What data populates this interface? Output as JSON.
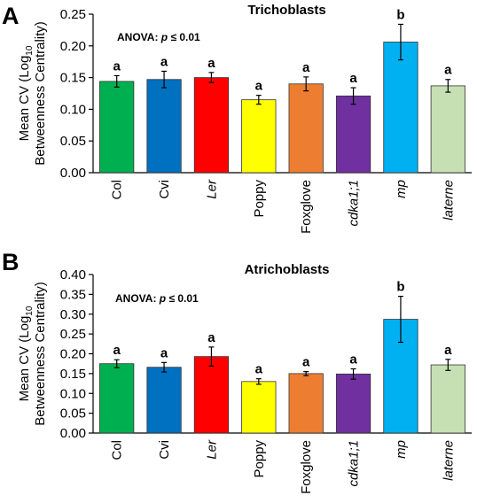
{
  "chart_data": [
    {
      "type": "bar",
      "panel": "A",
      "title": "Trichoblasts",
      "annotation_prefix": "ANOVA: ",
      "annotation_p": "p",
      "annotation_suffix": " ≤ 0.01",
      "ylabel_line1_main": "Mean CV (Log",
      "ylabel_line1_sub": "10",
      "ylabel_line2": "Betweenness Centrality)",
      "ylim": [
        0,
        0.25
      ],
      "yticks": [
        0.0,
        0.05,
        0.1,
        0.15,
        0.2,
        0.25
      ],
      "ytick_labels": [
        "0.00",
        "0.05",
        "0.10",
        "0.15",
        "0.20",
        "0.25"
      ],
      "categories": [
        "Col",
        "Cvi",
        "Ler",
        "Poppy",
        "Foxglove",
        "cdka1;1",
        "mp",
        "laterne"
      ],
      "values": [
        0.144,
        0.147,
        0.15,
        0.115,
        0.14,
        0.121,
        0.206,
        0.137
      ],
      "errors": [
        0.009,
        0.013,
        0.008,
        0.007,
        0.011,
        0.013,
        0.028,
        0.01
      ],
      "significance": [
        "a",
        "a",
        "a",
        "a",
        "a",
        "a",
        "b",
        "a"
      ]
    },
    {
      "type": "bar",
      "panel": "B",
      "title": "Atrichoblasts",
      "annotation_prefix": "ANOVA: ",
      "annotation_p": "p",
      "annotation_suffix": " ≤ 0.01",
      "ylabel_line1_main": "Mean CV (Log",
      "ylabel_line1_sub": "10",
      "ylabel_line2": "Betweenness Centrality)",
      "ylim": [
        0,
        0.4
      ],
      "yticks": [
        0.0,
        0.05,
        0.1,
        0.15,
        0.2,
        0.25,
        0.3,
        0.35,
        0.4
      ],
      "ytick_labels": [
        "0.00",
        "0.05",
        "0.10",
        "0.15",
        "0.20",
        "0.25",
        "0.30",
        "0.35",
        "0.40"
      ],
      "categories": [
        "Col",
        "Cvi",
        "Ler",
        "Poppy",
        "Foxglove",
        "cdka1;1",
        "mp",
        "laterne"
      ],
      "values": [
        0.175,
        0.166,
        0.193,
        0.13,
        0.15,
        0.149,
        0.287,
        0.172
      ],
      "errors": [
        0.01,
        0.012,
        0.024,
        0.007,
        0.005,
        0.013,
        0.058,
        0.014
      ],
      "significance": [
        "a",
        "a",
        "a",
        "a",
        "a",
        "a",
        "b",
        "a"
      ]
    }
  ],
  "bar_colors": [
    "#00b050",
    "#0070c0",
    "#ff0000",
    "#ffff00",
    "#ed7d31",
    "#7030a0",
    "#00b0f0",
    "#c6e0b4"
  ],
  "italic_categories": [
    "Ler",
    "cdka1;1",
    "mp",
    "laterne"
  ]
}
